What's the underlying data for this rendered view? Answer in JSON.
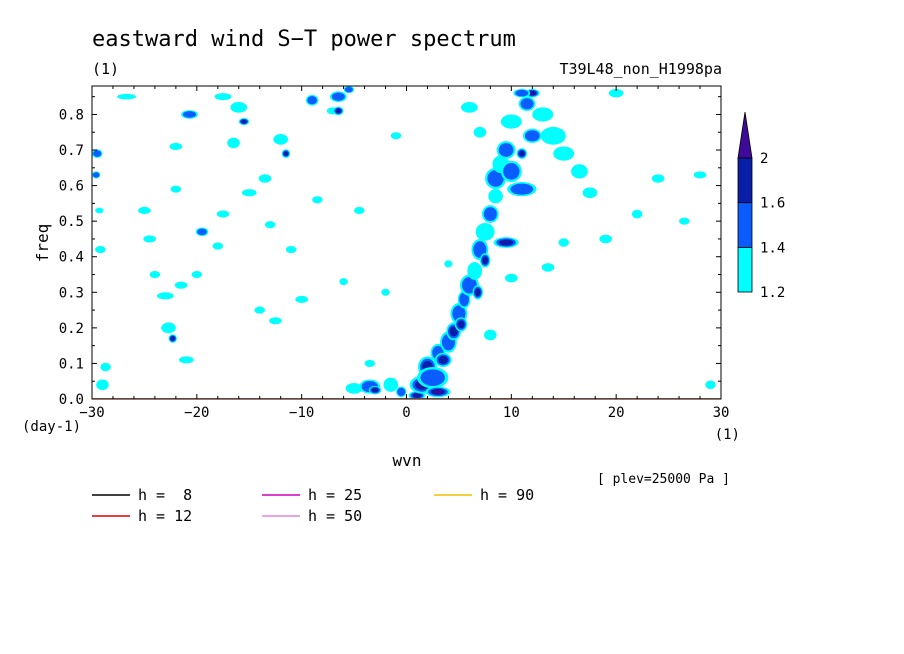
{
  "chart_data": {
    "type": "contour",
    "title": "eastward wind S−T power spectrum",
    "subtitle_left": "(1)",
    "subtitle_right": "T39L48_non_H1998pa",
    "xlabel": "wvn",
    "ylabel": "freq",
    "x_unit": "(1)",
    "y_unit": "(day-1)",
    "note": "[ plev=25000 Pa ]",
    "xlim": [
      -30,
      30
    ],
    "ylim": [
      0,
      0.88
    ],
    "x_ticks": [
      -30,
      -20,
      -10,
      0,
      10,
      20,
      30
    ],
    "x_tick_labels": [
      "−30",
      "−20",
      "−10",
      "0",
      "10",
      "20",
      "30"
    ],
    "y_ticks": [
      0,
      0.1,
      0.2,
      0.3,
      0.4,
      0.5,
      0.6,
      0.7,
      0.8
    ],
    "y_tick_labels": [
      "0.0",
      "0.1",
      "0.2",
      "0.3",
      "0.4",
      "0.5",
      "0.6",
      "0.7",
      "0.8"
    ],
    "colorbar": {
      "levels": [
        "1.2",
        "1.4",
        "1.6",
        "2"
      ],
      "colors": [
        "#00ffff",
        "#0a5cff",
        "#0a1fa8",
        "#3d0a99"
      ]
    },
    "series": [
      {
        "name": "h =  8",
        "h": 8,
        "color": "#000000"
      },
      {
        "name": "h = 12",
        "h": 12,
        "color": "#e00000"
      },
      {
        "name": "h = 25",
        "h": 25,
        "color": "#d000c0"
      },
      {
        "name": "h = 50",
        "h": 50,
        "color": "#e088e0"
      },
      {
        "name": "h = 90",
        "h": 90,
        "color": "#f0c000"
      }
    ],
    "blobs": [
      [
        -29.5,
        0.69,
        0.5,
        0.012,
        1
      ],
      [
        -29.6,
        0.63,
        0.4,
        0.01,
        1
      ],
      [
        -29.3,
        0.53,
        0.4,
        0.008,
        0
      ],
      [
        -29.2,
        0.42,
        0.5,
        0.01,
        0
      ],
      [
        -29.0,
        0.04,
        0.6,
        0.015,
        0
      ],
      [
        -28.7,
        0.09,
        0.5,
        0.012,
        0
      ],
      [
        -26.7,
        0.85,
        0.9,
        0.008,
        0
      ],
      [
        -25.0,
        0.53,
        0.6,
        0.01,
        0
      ],
      [
        -24.5,
        0.45,
        0.6,
        0.01,
        0
      ],
      [
        -24.0,
        0.35,
        0.5,
        0.01,
        0
      ],
      [
        -23.0,
        0.29,
        0.8,
        0.01,
        0
      ],
      [
        -22.7,
        0.2,
        0.7,
        0.015,
        0
      ],
      [
        -22.3,
        0.17,
        0.4,
        0.012,
        2
      ],
      [
        -22.0,
        0.59,
        0.5,
        0.01,
        0
      ],
      [
        -22.0,
        0.71,
        0.6,
        0.01,
        0
      ],
      [
        -21.5,
        0.32,
        0.6,
        0.01,
        0
      ],
      [
        -21.0,
        0.11,
        0.7,
        0.01,
        0
      ],
      [
        -20.7,
        0.8,
        0.8,
        0.012,
        1
      ],
      [
        -20.0,
        0.35,
        0.5,
        0.01,
        0
      ],
      [
        -19.5,
        0.47,
        0.6,
        0.012,
        1
      ],
      [
        -18.0,
        0.43,
        0.5,
        0.01,
        0
      ],
      [
        -17.5,
        0.52,
        0.6,
        0.01,
        0
      ],
      [
        -17.5,
        0.85,
        0.8,
        0.01,
        0
      ],
      [
        -16.5,
        0.72,
        0.6,
        0.015,
        0
      ],
      [
        -16.0,
        0.82,
        0.8,
        0.015,
        0
      ],
      [
        -15.5,
        0.78,
        0.5,
        0.01,
        2
      ],
      [
        -15.0,
        0.58,
        0.7,
        0.01,
        0
      ],
      [
        -14.0,
        0.25,
        0.5,
        0.01,
        0
      ],
      [
        -13.5,
        0.62,
        0.6,
        0.012,
        0
      ],
      [
        -13.0,
        0.49,
        0.5,
        0.01,
        0
      ],
      [
        -12.5,
        0.22,
        0.6,
        0.01,
        0
      ],
      [
        -12.0,
        0.73,
        0.7,
        0.015,
        0
      ],
      [
        -11.5,
        0.69,
        0.4,
        0.012,
        2
      ],
      [
        -11.0,
        0.42,
        0.5,
        0.01,
        0
      ],
      [
        -10.0,
        0.28,
        0.6,
        0.01,
        0
      ],
      [
        -9.0,
        0.84,
        0.6,
        0.015,
        1
      ],
      [
        -8.5,
        0.56,
        0.5,
        0.01,
        0
      ],
      [
        -7.0,
        0.81,
        0.6,
        0.01,
        0
      ],
      [
        -6.5,
        0.85,
        0.8,
        0.015,
        1
      ],
      [
        -6.5,
        0.81,
        0.5,
        0.012,
        2
      ],
      [
        -6.0,
        0.33,
        0.4,
        0.01,
        0
      ],
      [
        -5.5,
        0.87,
        0.5,
        0.01,
        1
      ],
      [
        -4.5,
        0.53,
        0.5,
        0.01,
        0
      ],
      [
        -3.5,
        0.1,
        0.5,
        0.01,
        0
      ],
      [
        -2.0,
        0.3,
        0.4,
        0.01,
        0
      ],
      [
        -1.0,
        0.74,
        0.5,
        0.01,
        0
      ],
      [
        -5.0,
        0.03,
        0.8,
        0.015,
        0
      ],
      [
        -3.5,
        0.035,
        1.0,
        0.02,
        1
      ],
      [
        -3.0,
        0.025,
        0.6,
        0.012,
        2
      ],
      [
        -1.5,
        0.04,
        0.7,
        0.02,
        0
      ],
      [
        -0.5,
        0.02,
        0.5,
        0.015,
        1
      ],
      [
        1.0,
        0.01,
        0.8,
        0.012,
        2
      ],
      [
        1.5,
        0.04,
        1.2,
        0.025,
        3
      ],
      [
        2.0,
        0.09,
        0.9,
        0.03,
        2
      ],
      [
        2.5,
        0.06,
        1.5,
        0.03,
        1
      ],
      [
        3.0,
        0.02,
        1.2,
        0.015,
        3
      ],
      [
        3.0,
        0.13,
        0.7,
        0.025,
        1
      ],
      [
        3.5,
        0.11,
        0.8,
        0.02,
        2
      ],
      [
        4.0,
        0.16,
        0.8,
        0.03,
        1
      ],
      [
        4.5,
        0.19,
        0.7,
        0.025,
        2
      ],
      [
        5.0,
        0.24,
        0.8,
        0.03,
        1
      ],
      [
        5.2,
        0.21,
        0.6,
        0.02,
        2
      ],
      [
        5.5,
        0.28,
        0.6,
        0.025,
        1
      ],
      [
        6.0,
        0.32,
        0.9,
        0.03,
        1
      ],
      [
        6.5,
        0.36,
        0.7,
        0.025,
        0
      ],
      [
        6.8,
        0.3,
        0.5,
        0.02,
        2
      ],
      [
        7.0,
        0.42,
        0.8,
        0.03,
        1
      ],
      [
        7.5,
        0.39,
        0.5,
        0.02,
        2
      ],
      [
        7.5,
        0.47,
        0.9,
        0.025,
        0
      ],
      [
        8.0,
        0.52,
        0.8,
        0.025,
        1
      ],
      [
        8.5,
        0.57,
        0.7,
        0.02,
        0
      ],
      [
        8.5,
        0.62,
        1.0,
        0.03,
        1
      ],
      [
        9.0,
        0.66,
        0.8,
        0.025,
        0
      ],
      [
        9.5,
        0.7,
        0.9,
        0.025,
        1
      ],
      [
        10.0,
        0.64,
        1.0,
        0.03,
        1
      ],
      [
        9.5,
        0.44,
        1.2,
        0.015,
        2
      ],
      [
        11.0,
        0.59,
        1.4,
        0.02,
        1
      ],
      [
        11.0,
        0.69,
        0.5,
        0.015,
        2
      ],
      [
        12.0,
        0.74,
        0.9,
        0.02,
        1
      ],
      [
        10.0,
        0.78,
        1.0,
        0.02,
        0
      ],
      [
        11.5,
        0.83,
        0.8,
        0.02,
        1
      ],
      [
        12.0,
        0.86,
        0.7,
        0.012,
        3
      ],
      [
        11.0,
        0.86,
        0.8,
        0.012,
        1
      ],
      [
        13.0,
        0.8,
        1.0,
        0.02,
        0
      ],
      [
        14.0,
        0.74,
        1.2,
        0.025,
        0
      ],
      [
        15.0,
        0.69,
        1.0,
        0.02,
        0
      ],
      [
        16.5,
        0.64,
        0.8,
        0.02,
        0
      ],
      [
        17.5,
        0.58,
        0.7,
        0.015,
        0
      ],
      [
        13.5,
        0.37,
        0.6,
        0.012,
        0
      ],
      [
        15.0,
        0.44,
        0.5,
        0.012,
        0
      ],
      [
        19.0,
        0.45,
        0.6,
        0.012,
        0
      ],
      [
        20.0,
        0.86,
        0.7,
        0.012,
        0
      ],
      [
        22.0,
        0.52,
        0.5,
        0.012,
        0
      ],
      [
        24.0,
        0.62,
        0.6,
        0.012,
        0
      ],
      [
        26.5,
        0.5,
        0.5,
        0.01,
        0
      ],
      [
        28.0,
        0.63,
        0.6,
        0.01,
        0
      ],
      [
        29.0,
        0.04,
        0.5,
        0.012,
        0
      ],
      [
        6.0,
        0.82,
        0.8,
        0.015,
        0
      ],
      [
        7.0,
        0.75,
        0.6,
        0.015,
        0
      ],
      [
        8.0,
        0.18,
        0.6,
        0.015,
        0
      ],
      [
        10.0,
        0.34,
        0.6,
        0.012,
        0
      ],
      [
        4.0,
        0.38,
        0.4,
        0.01,
        0
      ]
    ]
  }
}
